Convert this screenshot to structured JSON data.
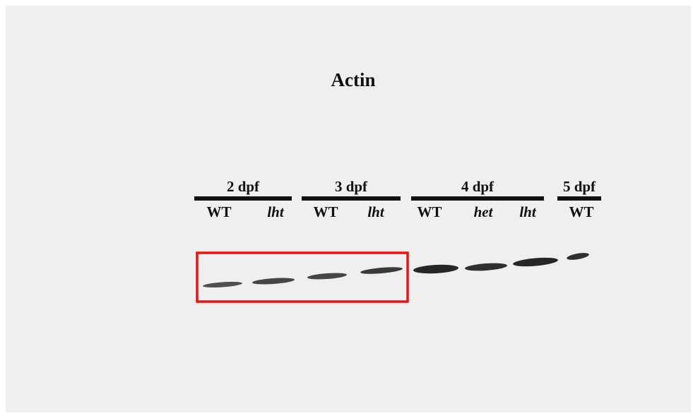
{
  "title": "Actin",
  "groups": [
    {
      "label": "2 dpf",
      "lanes": [
        {
          "label": "WT",
          "italic": false
        },
        {
          "label": "lht",
          "italic": true
        }
      ]
    },
    {
      "label": "3 dpf",
      "lanes": [
        {
          "label": "WT",
          "italic": false
        },
        {
          "label": "lht",
          "italic": true
        }
      ]
    },
    {
      "label": "4 dpf",
      "lanes": [
        {
          "label": "WT",
          "italic": false
        },
        {
          "label": "het",
          "italic": true
        },
        {
          "label": "lht",
          "italic": true
        }
      ]
    },
    {
      "label": "5 dpf",
      "lanes": [
        {
          "label": "WT",
          "italic": false
        }
      ]
    }
  ]
}
